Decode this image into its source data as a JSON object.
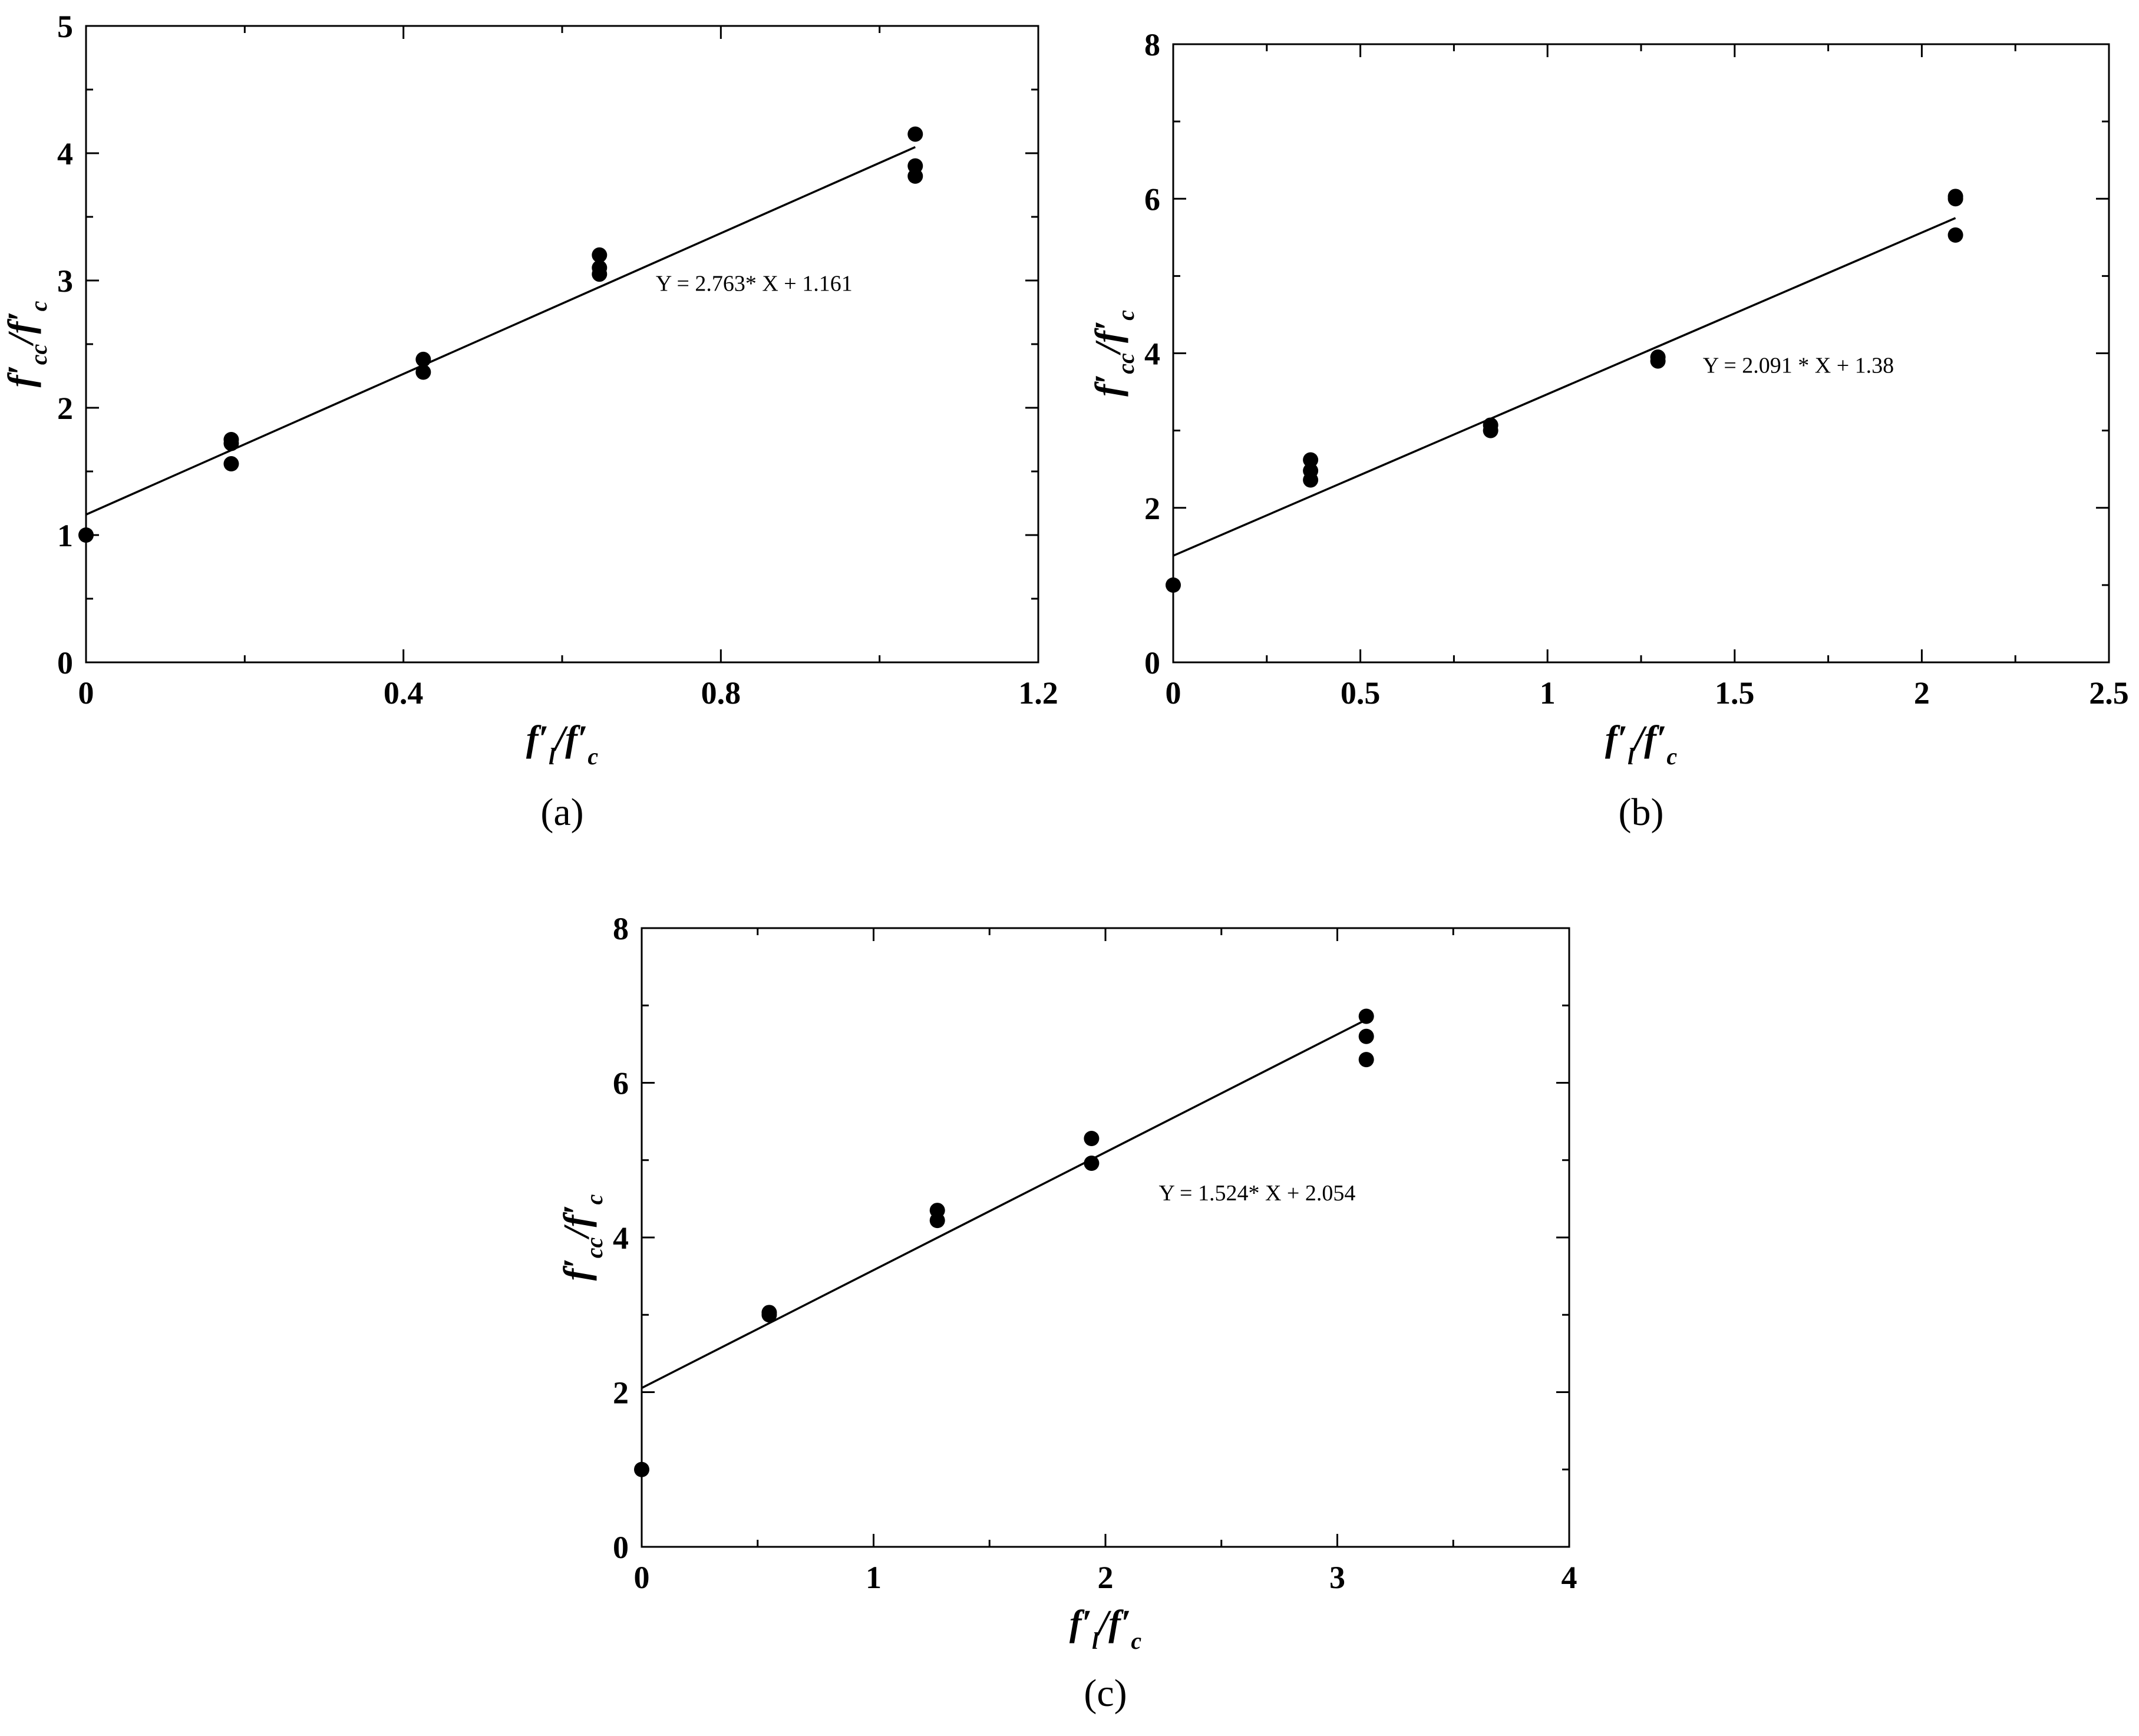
{
  "chart_data": [
    {
      "id": "a",
      "type": "scatter",
      "panel_label": "(a)",
      "xlabel": {
        "main": "f′",
        "sub": "l",
        "sep": "/f′",
        "sub2": "c"
      },
      "ylabel": {
        "main": "f′",
        "sub": "cc",
        "sep": "/f′",
        "sub2": "c"
      },
      "xlim": [
        0,
        1.2
      ],
      "ylim": [
        0,
        5
      ],
      "xticks": [
        0,
        0.4,
        0.8,
        1.2
      ],
      "xtick_labels": [
        "0",
        "0.4",
        "0.8",
        "1.2"
      ],
      "xminor": [
        0.2,
        0.6,
        1.0
      ],
      "yticks": [
        0,
        1,
        2,
        3,
        4,
        5
      ],
      "ytick_labels": [
        "0",
        "1",
        "2",
        "3",
        "4",
        "5"
      ],
      "yminor": [
        0.5,
        1.5,
        2.5,
        3.5,
        4.5
      ],
      "points": [
        {
          "x": 0,
          "y": 1.0
        },
        {
          "x": 0.183,
          "y": 1.75
        },
        {
          "x": 0.183,
          "y": 1.72
        },
        {
          "x": 0.183,
          "y": 1.56
        },
        {
          "x": 0.425,
          "y": 2.38
        },
        {
          "x": 0.425,
          "y": 2.28
        },
        {
          "x": 0.647,
          "y": 3.2
        },
        {
          "x": 0.647,
          "y": 3.1
        },
        {
          "x": 0.647,
          "y": 3.05
        },
        {
          "x": 1.045,
          "y": 4.15
        },
        {
          "x": 1.045,
          "y": 3.9
        },
        {
          "x": 1.045,
          "y": 3.82
        }
      ],
      "fit": {
        "slope": 2.763,
        "intercept": 1.161,
        "x_range": [
          0,
          1.045
        ]
      },
      "equation": "Y = 2.763* X + 1.161",
      "equation_pos": {
        "x": 0.718,
        "y": 2.92
      },
      "grid": false
    },
    {
      "id": "b",
      "type": "scatter",
      "panel_label": "(b)",
      "xlabel": {
        "main": "f′",
        "sub": "l",
        "sep": "/f′",
        "sub2": "c"
      },
      "ylabel": {
        "main": "f′",
        "sub": "cc",
        "sep": "/f′",
        "sub2": "c"
      },
      "xlim": [
        0,
        2.5
      ],
      "ylim": [
        0,
        8
      ],
      "xticks": [
        0,
        0.5,
        1,
        1.5,
        2,
        2.5
      ],
      "xtick_labels": [
        "0",
        "0.5",
        "1",
        "1.5",
        "2",
        "2.5"
      ],
      "xminor": [
        0.25,
        0.75,
        1.25,
        1.75,
        2.25
      ],
      "yticks": [
        0,
        2,
        4,
        6,
        8
      ],
      "ytick_labels": [
        "0",
        "2",
        "4",
        "6",
        "8"
      ],
      "yminor": [
        1,
        3,
        5,
        7
      ],
      "points": [
        {
          "x": 0,
          "y": 1.0
        },
        {
          "x": 0.367,
          "y": 2.62
        },
        {
          "x": 0.367,
          "y": 2.48
        },
        {
          "x": 0.367,
          "y": 2.36
        },
        {
          "x": 0.848,
          "y": 3.07
        },
        {
          "x": 0.848,
          "y": 3.0
        },
        {
          "x": 1.295,
          "y": 3.95
        },
        {
          "x": 1.295,
          "y": 3.9
        },
        {
          "x": 2.09,
          "y": 6.03
        },
        {
          "x": 2.09,
          "y": 6.0
        },
        {
          "x": 2.09,
          "y": 5.53
        }
      ],
      "fit": {
        "slope": 2.091,
        "intercept": 1.38,
        "x_range": [
          0,
          2.09
        ]
      },
      "equation": "Y = 2.091 * X + 1.38",
      "equation_pos": {
        "x": 1.415,
        "y": 3.75
      },
      "grid": false
    },
    {
      "id": "c",
      "type": "scatter",
      "panel_label": "(c)",
      "xlabel": {
        "main": "f′",
        "sub": "l",
        "sep": "/f′",
        "sub2": "c"
      },
      "ylabel": {
        "main": "f′",
        "sub": "cc",
        "sep": "/f′",
        "sub2": "c"
      },
      "xlim": [
        0,
        4
      ],
      "ylim": [
        0,
        8
      ],
      "xticks": [
        0,
        1,
        2,
        3,
        4
      ],
      "xtick_labels": [
        "0",
        "1",
        "2",
        "3",
        "4"
      ],
      "xminor": [
        0.5,
        1.5,
        2.5,
        3.5
      ],
      "yticks": [
        0,
        2,
        4,
        6,
        8
      ],
      "ytick_labels": [
        "0",
        "2",
        "4",
        "6",
        "8"
      ],
      "yminor": [
        1,
        3,
        5,
        7
      ],
      "points": [
        {
          "x": 0,
          "y": 1.0
        },
        {
          "x": 0.55,
          "y": 3.03
        },
        {
          "x": 0.55,
          "y": 3.0
        },
        {
          "x": 1.275,
          "y": 4.35
        },
        {
          "x": 1.275,
          "y": 4.22
        },
        {
          "x": 1.94,
          "y": 5.28
        },
        {
          "x": 1.94,
          "y": 4.96
        },
        {
          "x": 3.125,
          "y": 6.86
        },
        {
          "x": 3.125,
          "y": 6.6
        },
        {
          "x": 3.125,
          "y": 6.3
        }
      ],
      "fit": {
        "slope": 1.524,
        "intercept": 2.054,
        "x_range": [
          0,
          3.125
        ]
      },
      "equation": "Y = 1.524* X + 2.054",
      "equation_pos": {
        "x": 2.23,
        "y": 4.48
      },
      "grid": false
    }
  ]
}
